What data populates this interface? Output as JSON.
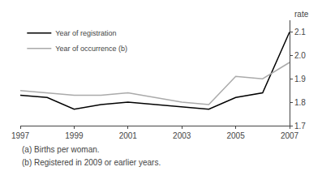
{
  "chart_data": {
    "type": "line",
    "x": [
      1997,
      1998,
      1999,
      2000,
      2001,
      2002,
      2003,
      2004,
      2005,
      2006,
      2007
    ],
    "series": [
      {
        "name": "Year of registration",
        "color": "#000000",
        "values": [
          1.83,
          1.82,
          1.77,
          1.79,
          1.8,
          1.79,
          1.78,
          1.77,
          1.82,
          1.84,
          2.1
        ]
      },
      {
        "name": "Year of occurrence (b)",
        "color": "#aaaaaa",
        "values": [
          1.85,
          1.84,
          1.83,
          1.83,
          1.84,
          1.82,
          1.8,
          1.79,
          1.91,
          1.9,
          1.97
        ]
      }
    ],
    "xlim": [
      1997,
      2007
    ],
    "xticks": [
      1997,
      1999,
      2001,
      2003,
      2005,
      2007
    ],
    "ylim": [
      1.7,
      2.15
    ],
    "yticks": [
      1.7,
      1.8,
      1.9,
      {
        "value": 2.0,
        "label": "2.0"
      },
      2.1
    ],
    "ylabel": "rate",
    "annotations": [
      "(a) Births per woman.",
      "(b) Registered in 2009 or earlier years."
    ],
    "legend": "upper left",
    "grid": false
  }
}
